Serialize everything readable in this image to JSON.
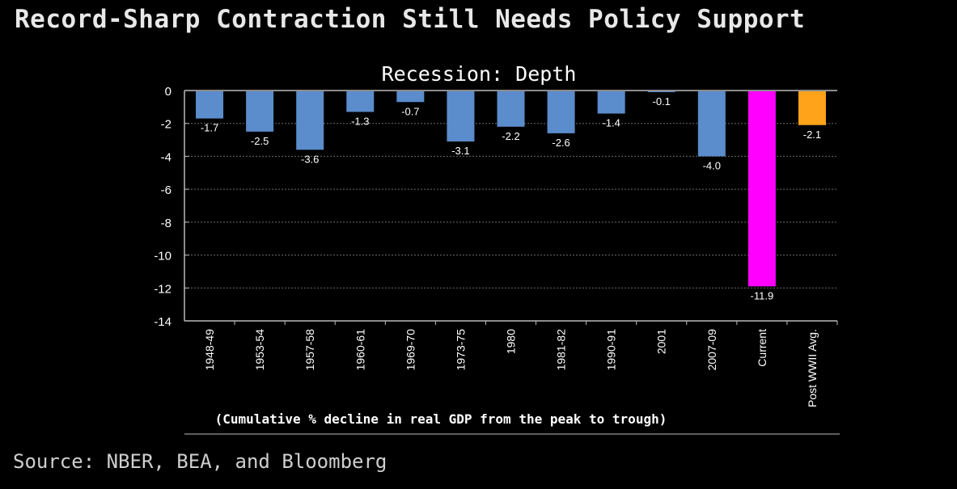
{
  "header": {
    "title": "Record-Sharp Contraction Still Needs Policy Support"
  },
  "footer": {
    "source": "Source: NBER, BEA, and Bloomberg"
  },
  "chart_data": {
    "type": "bar",
    "title": "Recession: Depth",
    "xlabel": "(Cumulative % decline in real GDP from the peak to trough)",
    "ylabel": "",
    "ylim": [
      -14,
      0
    ],
    "yticks": [
      0,
      -2,
      -4,
      -6,
      -8,
      -10,
      -12,
      -14
    ],
    "grid": true,
    "categories": [
      "1948-49",
      "1953-54",
      "1957-58",
      "1960-61",
      "1969-70",
      "1973-75",
      "1980",
      "1981-82",
      "1990-91",
      "2001",
      "2007-09",
      "Current",
      "Post WWII Avg."
    ],
    "values": [
      -1.7,
      -2.5,
      -3.6,
      -1.3,
      -0.7,
      -3.1,
      -2.2,
      -2.6,
      -1.4,
      -0.1,
      -4.0,
      -11.9,
      -2.1
    ],
    "value_labels": [
      "-1.7",
      "-2.5",
      "-3.6",
      "-1.3",
      "-0.7",
      "-3.1",
      "-2.2",
      "-2.6",
      "-1.4",
      "-0.1",
      "-4.0",
      "-11.9",
      "-2.1"
    ],
    "colors": {
      "default": "#5b8ccb",
      "Current": "#ff00ff",
      "Post WWII Avg.": "#ffa31a",
      "axis": "#bbbbbb",
      "grid": "#6b6b6b",
      "text": "#ffffff"
    }
  }
}
